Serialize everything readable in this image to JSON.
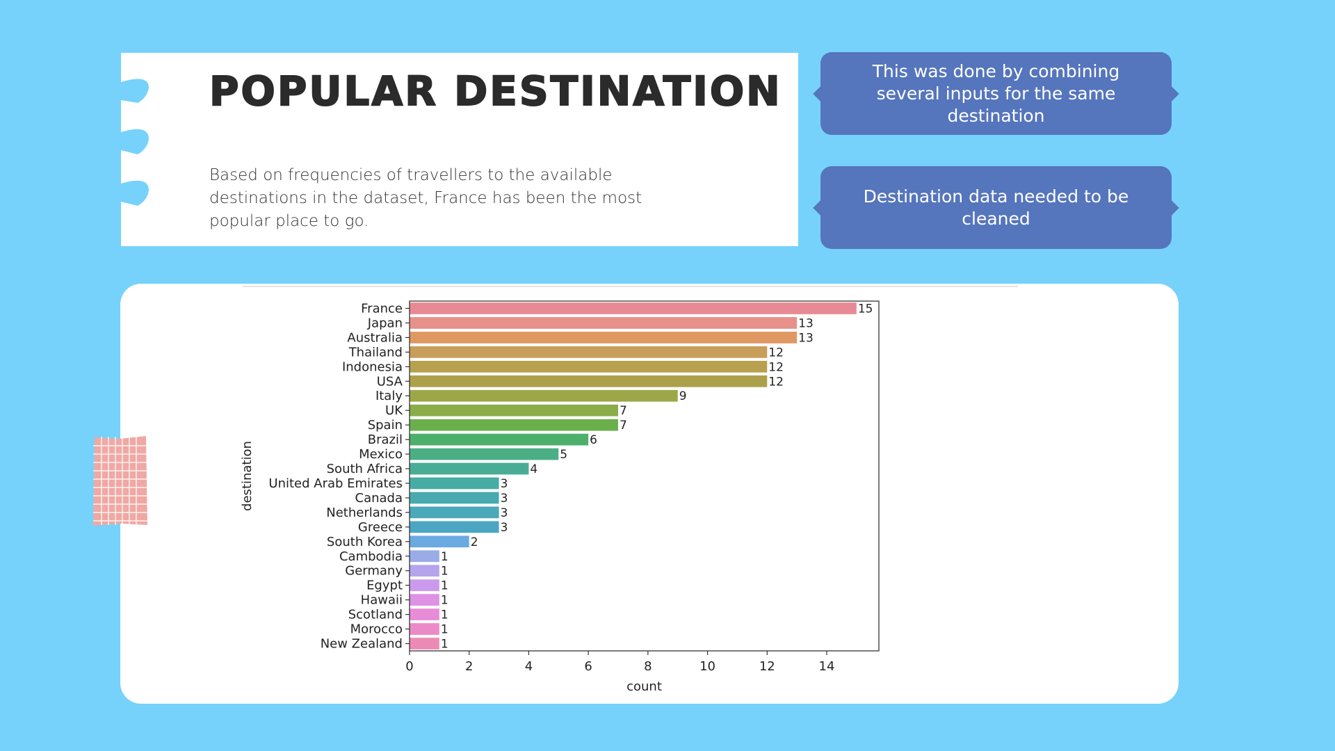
{
  "title": "POPULAR DESTINATION",
  "subtitle": "Based on frequencies of travellers to the available destinations in the dataset, France has been the most popular place to go.",
  "callouts": [
    "This was done by combining several inputs for the same destination",
    "Destination data needed to be cleaned"
  ],
  "colors": {
    "background": "#76D2FB",
    "callout": "#5575BD",
    "accent_patch": "#F0A8A4"
  },
  "chart_data": {
    "type": "bar",
    "orientation": "horizontal",
    "xlabel": "count",
    "ylabel": "destination",
    "xlim": [
      0,
      15.75
    ],
    "xticks": [
      0,
      2,
      4,
      6,
      8,
      10,
      12,
      14
    ],
    "grid": false,
    "categories": [
      "France",
      "Japan",
      "Australia",
      "Thailand",
      "Indonesia",
      "USA",
      "Italy",
      "UK",
      "Spain",
      "Brazil",
      "Mexico",
      "South Africa",
      "United Arab Emirates",
      "Canada",
      "Netherlands",
      "Greece",
      "South Korea",
      "Cambodia",
      "Germany",
      "Egypt",
      "Hawaii",
      "Scotland",
      "Morocco",
      "New Zealand"
    ],
    "values": [
      15,
      13,
      13,
      12,
      12,
      12,
      9,
      7,
      7,
      6,
      5,
      4,
      3,
      3,
      3,
      3,
      2,
      1,
      1,
      1,
      1,
      1,
      1,
      1
    ],
    "bar_colors": [
      "#E88A95",
      "#E8908A",
      "#E09862",
      "#C99D5A",
      "#B7A04E",
      "#ADA04A",
      "#9CA847",
      "#8AAD4A",
      "#6BAF4D",
      "#4DB06A",
      "#4BAE85",
      "#49AD95",
      "#47ACA4",
      "#48AAAF",
      "#4AA8B8",
      "#4AA6C2",
      "#6AAAE0",
      "#99ACE8",
      "#B5A4EC",
      "#CC9AEC",
      "#DE92E4",
      "#E88CD8",
      "#EC8AC8",
      "#EC8AB6"
    ]
  }
}
